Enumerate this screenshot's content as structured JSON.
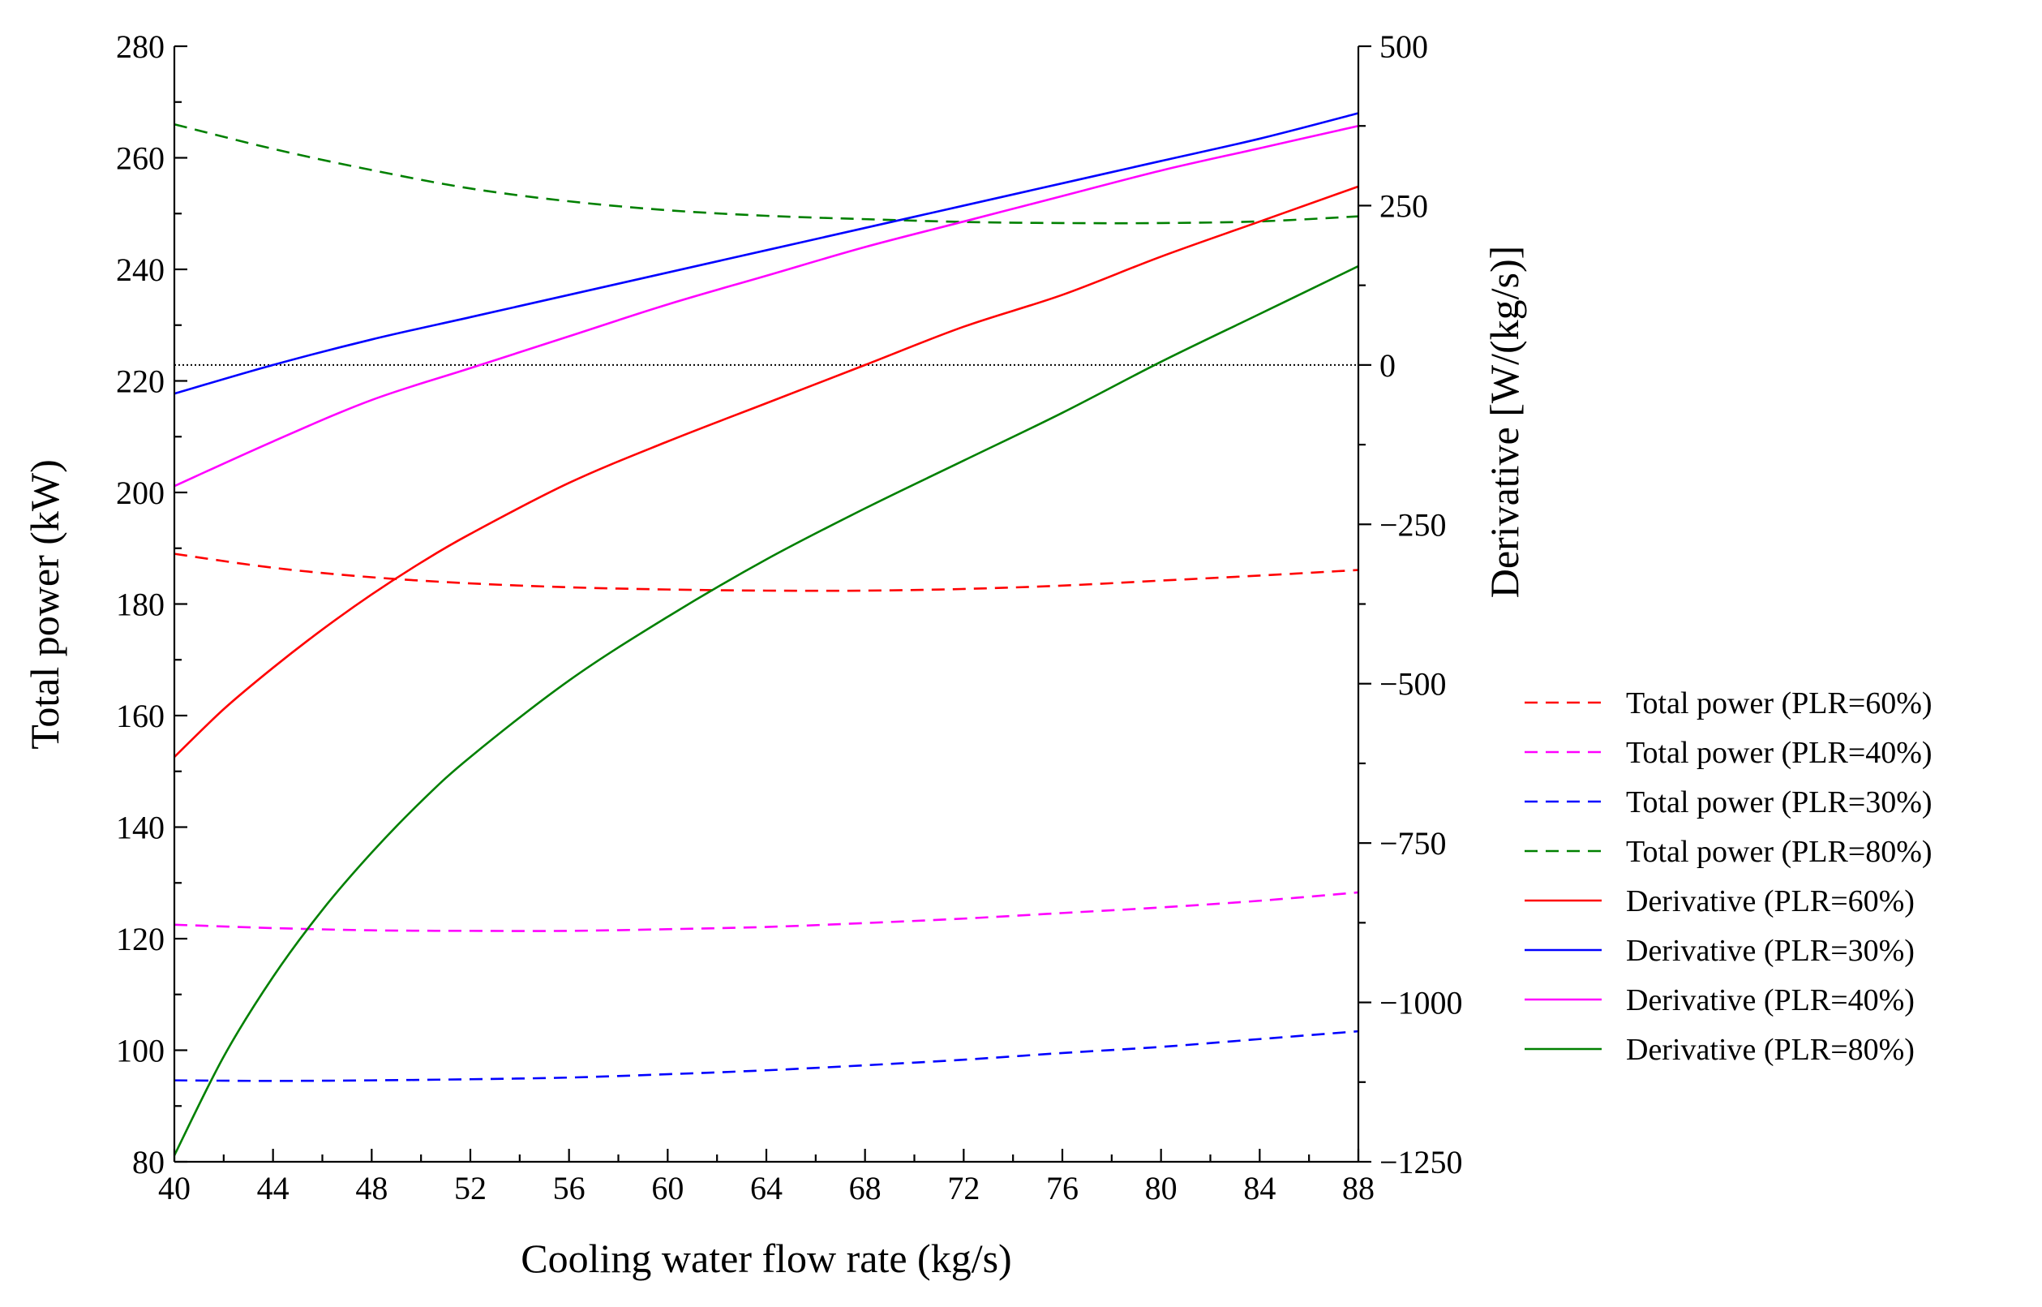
{
  "chart_data": {
    "type": "line",
    "title": "",
    "xlabel": "Cooling water flow rate (kg/s)",
    "ylabel_left": "Total power (kW)",
    "ylabel_right": "Derivative [W/(kg/s)]",
    "xlim": [
      40,
      88
    ],
    "ylim_left": [
      80,
      280
    ],
    "ylim_right": [
      -1250,
      500
    ],
    "x_ticks": [
      40,
      44,
      48,
      52,
      56,
      60,
      64,
      68,
      72,
      76,
      80,
      84,
      88
    ],
    "y_left_ticks": [
      80,
      100,
      120,
      140,
      160,
      180,
      200,
      220,
      240,
      260,
      280
    ],
    "y_right_ticks": [
      -1250,
      -1000,
      -750,
      -500,
      -250,
      0,
      250,
      500
    ],
    "y_right_tick_labels": [
      "−1250",
      "−1000",
      "−750",
      "−500",
      "−250",
      "0",
      "250",
      "500"
    ],
    "zero_reference_line": 0,
    "legend_position": "right",
    "series": [
      {
        "name": "Total power (PLR=60%)",
        "axis": "left",
        "style": "dashed",
        "color": "#ff0000",
        "x": [
          40,
          44,
          48,
          52,
          56,
          60,
          64,
          68,
          72,
          76,
          80,
          84,
          88
        ],
        "y": [
          189,
          186.5,
          184.8,
          183.7,
          183,
          182.6,
          182.4,
          182.4,
          182.7,
          183.3,
          184.2,
          185.1,
          186.1
        ]
      },
      {
        "name": "Total power (PLR=40%)",
        "axis": "left",
        "style": "dashed",
        "color": "#ff00ff",
        "x": [
          40,
          44,
          48,
          52,
          56,
          60,
          64,
          68,
          72,
          76,
          80,
          84,
          88
        ],
        "y": [
          122.5,
          121.9,
          121.5,
          121.4,
          121.4,
          121.7,
          122.1,
          122.8,
          123.6,
          124.6,
          125.6,
          126.8,
          128.3
        ]
      },
      {
        "name": "Total power (PLR=30%)",
        "axis": "left",
        "style": "dashed",
        "color": "#0000ff",
        "x": [
          40,
          44,
          48,
          52,
          56,
          60,
          64,
          68,
          72,
          76,
          80,
          84,
          88
        ],
        "y": [
          94.6,
          94.5,
          94.6,
          94.8,
          95.1,
          95.7,
          96.4,
          97.3,
          98.3,
          99.5,
          100.6,
          102,
          103.4
        ]
      },
      {
        "name": "Total power (PLR=80%)",
        "axis": "left",
        "style": "dashed",
        "color": "#008000",
        "x": [
          40,
          44,
          48,
          52,
          56,
          60,
          64,
          68,
          72,
          76,
          80,
          84,
          88
        ],
        "y": [
          266,
          261.6,
          257.8,
          254.5,
          252.2,
          250.6,
          249.6,
          249,
          248.5,
          248.3,
          248.3,
          248.6,
          249.5
        ]
      },
      {
        "name": "Derivative (PLR=60%)",
        "axis": "right",
        "style": "solid",
        "color": "#ff0000",
        "x": [
          40,
          42,
          44,
          46,
          48,
          50,
          52,
          56,
          60,
          64,
          68,
          72,
          76,
          80,
          84,
          88
        ],
        "y": [
          -615,
          -540,
          -475,
          -415,
          -360,
          -310,
          -265,
          -185,
          -120,
          -60,
          0,
          60,
          110,
          170,
          225,
          280
        ]
      },
      {
        "name": "Derivative (PLR=30%)",
        "axis": "right",
        "style": "solid",
        "color": "#0000ff",
        "x": [
          40,
          44,
          48,
          52,
          56,
          60,
          64,
          68,
          72,
          76,
          80,
          84,
          88
        ],
        "y": [
          -45,
          0,
          40,
          75,
          110,
          145,
          180,
          215,
          250,
          285,
          320,
          355,
          395
        ]
      },
      {
        "name": "Derivative (PLR=40%)",
        "axis": "right",
        "style": "solid",
        "color": "#ff00ff",
        "x": [
          40,
          44,
          48,
          52,
          56,
          60,
          64,
          68,
          72,
          76,
          80,
          84,
          88
        ],
        "y": [
          -190,
          -120,
          -55,
          -5,
          45,
          95,
          140,
          185,
          225,
          265,
          305,
          340,
          375
        ]
      },
      {
        "name": "Derivative (PLR=80%)",
        "axis": "right",
        "style": "solid",
        "color": "#008000",
        "x": [
          40,
          42,
          44,
          46,
          48,
          50,
          52,
          56,
          60,
          64,
          68,
          72,
          76,
          80,
          84,
          88
        ],
        "y": [
          -1240,
          -1085,
          -960,
          -855,
          -765,
          -685,
          -615,
          -495,
          -395,
          -305,
          -225,
          -150,
          -75,
          5,
          80,
          155
        ]
      }
    ]
  }
}
